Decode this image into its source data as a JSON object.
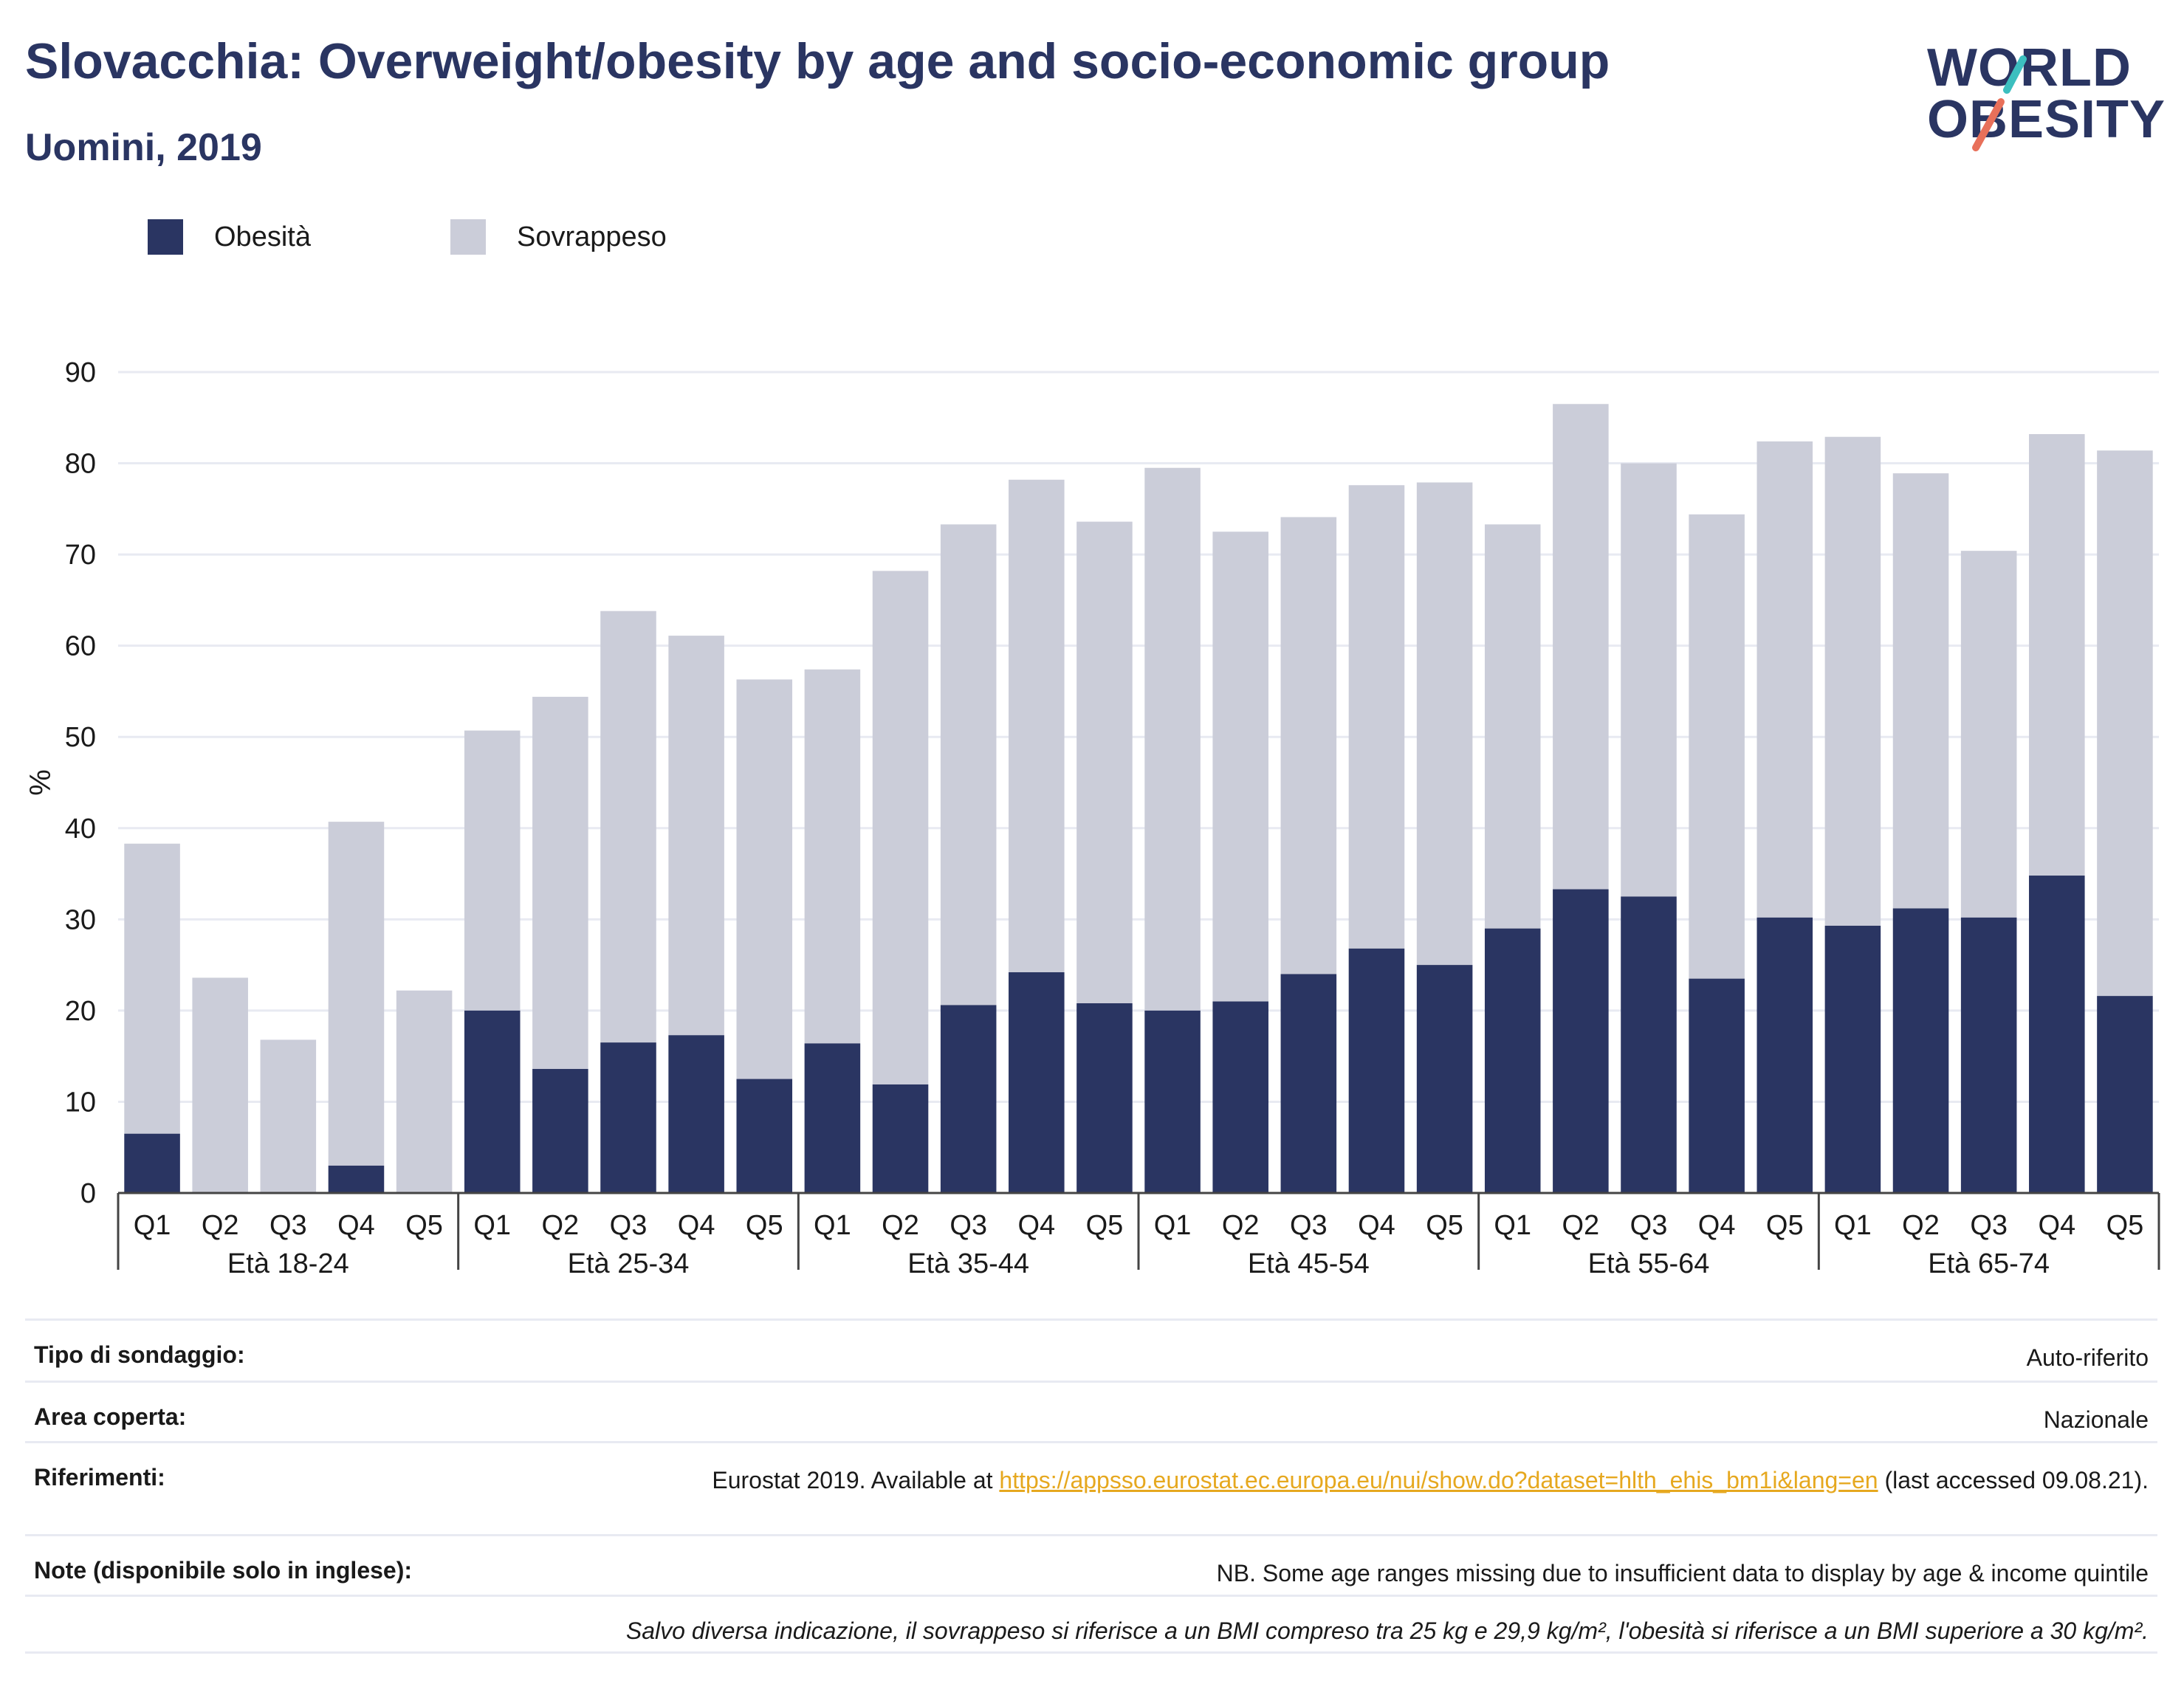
{
  "header": {
    "title": "Slovacchia: Overweight/obesity by age and socio-economic group",
    "subtitle": "Uomini, 2019"
  },
  "logo": {
    "line1": "WORLD",
    "line2": "OBESITY",
    "colors": {
      "text": "#2a3562",
      "slash_top": "#3cbfbf",
      "slash_bottom": "#e8705a"
    }
  },
  "legend": [
    {
      "label": "Obesità",
      "color": "#2a3562"
    },
    {
      "label": "Sovrappeso",
      "color": "#cbcdd9"
    }
  ],
  "chart_data": {
    "type": "bar",
    "stacked": true,
    "ylabel": "%",
    "ylim": [
      0,
      90
    ],
    "yticks": [
      0,
      10,
      20,
      30,
      40,
      50,
      60,
      70,
      80,
      90
    ],
    "grid": true,
    "legend_position": "top-left",
    "groups": [
      {
        "label": "Età 18-24",
        "categories": [
          "Q1",
          "Q2",
          "Q3",
          "Q4",
          "Q5"
        ]
      },
      {
        "label": "Età 25-34",
        "categories": [
          "Q1",
          "Q2",
          "Q3",
          "Q4",
          "Q5"
        ]
      },
      {
        "label": "Età 35-44",
        "categories": [
          "Q1",
          "Q2",
          "Q3",
          "Q4",
          "Q5"
        ]
      },
      {
        "label": "Età 45-54",
        "categories": [
          "Q1",
          "Q2",
          "Q3",
          "Q4",
          "Q5"
        ]
      },
      {
        "label": "Età 55-64",
        "categories": [
          "Q1",
          "Q2",
          "Q3",
          "Q4",
          "Q5"
        ]
      },
      {
        "label": "Età 65-74",
        "categories": [
          "Q1",
          "Q2",
          "Q3",
          "Q4",
          "Q5"
        ]
      }
    ],
    "series": [
      {
        "name": "Obesità",
        "color": "#2a3562",
        "values": [
          6.5,
          0,
          0,
          3.0,
          0,
          20.0,
          13.6,
          16.5,
          17.3,
          12.5,
          16.4,
          11.9,
          20.6,
          24.2,
          20.8,
          20.0,
          21.0,
          24.0,
          26.8,
          25.0,
          29.0,
          33.3,
          32.5,
          23.5,
          30.2,
          29.3,
          31.2,
          30.2,
          34.8,
          21.6
        ]
      },
      {
        "name": "Sovrappeso",
        "color": "#cbcdd9",
        "values": [
          31.8,
          23.6,
          16.8,
          37.7,
          22.2,
          30.7,
          40.8,
          47.3,
          43.8,
          43.8,
          41.0,
          56.3,
          52.7,
          54.0,
          52.8,
          59.5,
          51.5,
          50.1,
          50.8,
          52.9,
          44.3,
          53.2,
          47.5,
          50.9,
          52.2,
          53.6,
          47.7,
          40.2,
          48.4,
          59.8
        ]
      }
    ]
  },
  "info": [
    {
      "key": "Tipo di sondaggio:",
      "value": "Auto-riferito"
    },
    {
      "key": "Area coperta:",
      "value": "Nazionale"
    },
    {
      "key": "Riferimenti:",
      "value_prefix": "Eurostat 2019. Available at",
      "link": "https://appsso.eurostat.ec.europa.eu/nui/show.do?dataset=hlth_ehis_bm1i&lang=en",
      "value_suffix": "(last accessed 09.08.21)."
    },
    {
      "key": "Note (disponibile solo in inglese):",
      "value": "NB. Some age ranges missing due to insufficient data to display by age & income quintile"
    }
  ],
  "footnote": "Salvo diversa indicazione, il sovrappeso si riferisce a un BMI compreso tra 25 kg e 29,9 kg/m², l'obesità si riferisce a un BMI superiore a 30 kg/m²."
}
